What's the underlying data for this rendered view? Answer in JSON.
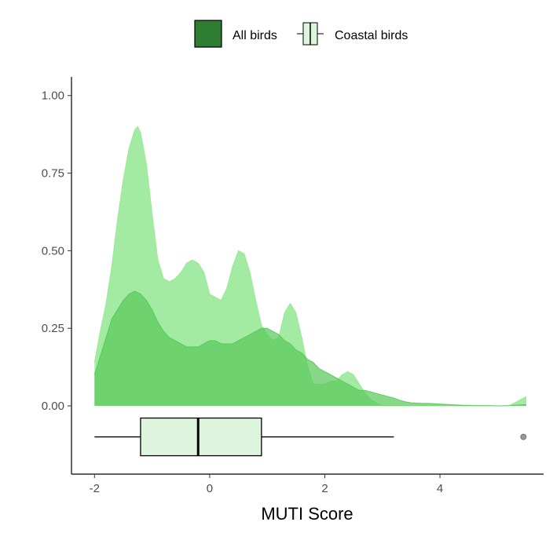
{
  "colors": {
    "all_birds": "#2e7d32",
    "all_birds_fill": "#57c857",
    "coastal_birds_fill": "#93e893",
    "box_fill": "#dcf5dc",
    "outlier": "#999999",
    "axis": "#000000"
  },
  "chart_data": {
    "type": "area",
    "xlabel": "MUTI Score",
    "ylabel": "",
    "title": "",
    "xlim": [
      -2.4,
      5.8
    ],
    "ylim": [
      -0.22,
      1.06
    ],
    "x_ticks": [
      -2,
      0,
      2,
      4
    ],
    "y_ticks": [
      0.0,
      0.25,
      0.5,
      0.75,
      1.0
    ],
    "x_tick_labels": [
      "-2",
      "0",
      "2",
      "4"
    ],
    "y_tick_labels": [
      "0.00",
      "0.25",
      "0.50",
      "0.75",
      "1.00"
    ],
    "grid": false,
    "legend_position": "top",
    "series": [
      {
        "name": "Coastal birds",
        "type": "density",
        "x": [
          -2.0,
          -1.9,
          -1.8,
          -1.7,
          -1.6,
          -1.5,
          -1.4,
          -1.3,
          -1.25,
          -1.2,
          -1.1,
          -1.0,
          -0.9,
          -0.8,
          -0.7,
          -0.6,
          -0.5,
          -0.4,
          -0.3,
          -0.2,
          -0.1,
          0.0,
          0.1,
          0.2,
          0.3,
          0.4,
          0.5,
          0.6,
          0.7,
          0.8,
          0.9,
          1.0,
          1.1,
          1.2,
          1.3,
          1.4,
          1.5,
          1.6,
          1.7,
          1.8,
          1.9,
          2.0,
          2.1,
          2.2,
          2.3,
          2.4,
          2.5,
          2.6,
          2.7,
          2.8,
          2.9,
          3.0,
          3.1,
          3.2,
          3.3,
          3.4,
          3.5,
          3.6,
          3.7,
          3.8,
          4.0,
          4.2,
          4.5,
          4.8,
          5.0,
          5.2,
          5.3,
          5.4,
          5.5
        ],
        "y": [
          0.14,
          0.24,
          0.33,
          0.45,
          0.6,
          0.73,
          0.83,
          0.89,
          0.9,
          0.88,
          0.78,
          0.62,
          0.47,
          0.41,
          0.4,
          0.41,
          0.43,
          0.46,
          0.47,
          0.46,
          0.43,
          0.36,
          0.35,
          0.34,
          0.38,
          0.45,
          0.5,
          0.49,
          0.43,
          0.34,
          0.26,
          0.23,
          0.21,
          0.22,
          0.3,
          0.33,
          0.3,
          0.22,
          0.13,
          0.07,
          0.07,
          0.07,
          0.08,
          0.08,
          0.1,
          0.11,
          0.1,
          0.07,
          0.04,
          0.02,
          0.01,
          0.0,
          0.0,
          0.0,
          0.0,
          0.0,
          0.0,
          0.0,
          0.0,
          0.0,
          0.0,
          0.0,
          0.0,
          0.0,
          0.0,
          0.0,
          0.01,
          0.02,
          0.03
        ]
      },
      {
        "name": "All birds",
        "type": "density",
        "x": [
          -2.0,
          -1.9,
          -1.8,
          -1.7,
          -1.6,
          -1.5,
          -1.4,
          -1.3,
          -1.2,
          -1.1,
          -1.0,
          -0.9,
          -0.8,
          -0.7,
          -0.6,
          -0.5,
          -0.4,
          -0.3,
          -0.2,
          -0.1,
          0.0,
          0.1,
          0.2,
          0.3,
          0.4,
          0.5,
          0.6,
          0.7,
          0.8,
          0.9,
          1.0,
          1.1,
          1.2,
          1.3,
          1.4,
          1.5,
          1.6,
          1.7,
          1.8,
          1.9,
          2.0,
          2.1,
          2.2,
          2.3,
          2.4,
          2.5,
          2.6,
          2.7,
          2.8,
          2.9,
          3.0,
          3.1,
          3.2,
          3.3,
          3.4,
          3.5,
          3.6,
          3.7,
          3.8,
          3.9,
          4.0,
          4.2,
          4.4,
          4.6,
          4.8,
          5.0,
          5.2,
          5.4,
          5.5
        ],
        "y": [
          0.1,
          0.16,
          0.22,
          0.28,
          0.31,
          0.34,
          0.36,
          0.37,
          0.36,
          0.34,
          0.31,
          0.27,
          0.24,
          0.22,
          0.21,
          0.2,
          0.19,
          0.19,
          0.19,
          0.2,
          0.21,
          0.21,
          0.2,
          0.2,
          0.2,
          0.21,
          0.22,
          0.23,
          0.24,
          0.25,
          0.25,
          0.24,
          0.23,
          0.21,
          0.2,
          0.18,
          0.17,
          0.15,
          0.14,
          0.12,
          0.11,
          0.1,
          0.09,
          0.08,
          0.07,
          0.06,
          0.05,
          0.05,
          0.045,
          0.04,
          0.035,
          0.03,
          0.025,
          0.018,
          0.013,
          0.01,
          0.009,
          0.008,
          0.008,
          0.007,
          0.006,
          0.004,
          0.002,
          0.001,
          0.001,
          0.0,
          0.001,
          0.003,
          0.004
        ]
      }
    ],
    "boxplot": {
      "series": "Coastal birds",
      "y_position": -0.1,
      "whisker_low": -2.0,
      "q1": -1.2,
      "median": -0.2,
      "q3": 0.9,
      "whisker_high": 3.2,
      "outliers": [
        5.45
      ]
    }
  },
  "legend": {
    "items": [
      {
        "label": "All birds",
        "key": "fill"
      },
      {
        "label": "Coastal birds",
        "key": "boxplot"
      }
    ]
  }
}
